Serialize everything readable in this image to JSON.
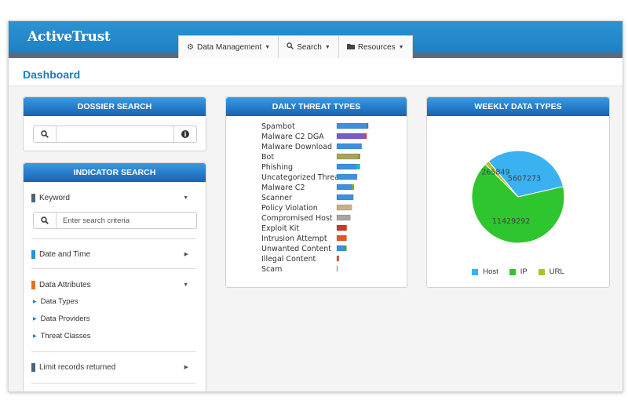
{
  "app": {
    "brand": "ActiveTrust",
    "page_title": "Dashboard"
  },
  "nav": [
    {
      "label": "Data Management",
      "icon": "gear-icon"
    },
    {
      "label": "Search",
      "icon": "search-icon"
    },
    {
      "label": "Resources",
      "icon": "folder-icon"
    }
  ],
  "dossier": {
    "title": "DOSSIER SEARCH",
    "value": ""
  },
  "indicator": {
    "title": "INDICATOR SEARCH",
    "keyword_label": "Keyword",
    "keyword_placeholder": "Enter search criteria",
    "date_label": "Date and Time",
    "attributes_label": "Data Attributes",
    "sub_items": [
      "Data Types",
      "Data Providers",
      "Threat Classes"
    ],
    "limit_label": "Limit records returned",
    "colors": {
      "keyword": "#4d6478",
      "date": "#2590d6",
      "attributes": "#e07322",
      "limit": "#4d6478"
    }
  },
  "daily": {
    "title": "DAILY THREAT TYPES",
    "chart_data": {
      "type": "bar",
      "orientation": "horizontal",
      "stacked": true,
      "categories": [
        "Spambot",
        "Malware C2 DGA",
        "Malware Download",
        "Bot",
        "Phishing",
        "Uncategorized Threat",
        "Malware C2",
        "Scanner",
        "Policy Violation",
        "Compromised Host",
        "Exploit Kit",
        "Intrusion Attempt",
        "Unwanted Content",
        "Illegal Content",
        "Scam"
      ],
      "bar_colors": [
        "#3d8fe0",
        "#7b5bc8",
        "#3d8fe0",
        "#a7a25f",
        "#3d8fe0",
        "#3d8fe0",
        "#3d8fe0",
        "#3d8fe0",
        "#c8b08a",
        "#a7a6a0",
        "#c33a33",
        "#e2582a",
        "#3d8fe0",
        "#e2582a",
        "#9a9a9a"
      ],
      "series": [
        {
          "name": "primary",
          "values": [
            40,
            38,
            33,
            29,
            26,
            27,
            20,
            22,
            20,
            18,
            13,
            13,
            10,
            2,
            0.6
          ]
        },
        {
          "name": "secondary",
          "values": [
            2,
            2,
            0,
            2,
            5,
            0,
            3,
            0,
            0,
            0,
            1,
            0,
            3,
            1,
            0
          ]
        }
      ],
      "secondary_colors": [
        "#5a7a5a",
        "#d64545",
        "#3d8fe0",
        "#6f8c3d",
        "#26b7b0",
        "#3d8fe0",
        "#7fa52c",
        "#3d8fe0",
        "#c8b08a",
        "#a7a6a0",
        "#e8b040",
        "#e2582a",
        "#3aa54a",
        "#e2582a",
        "#9a9a9a"
      ],
      "xlim": [
        0,
        48
      ]
    }
  },
  "weekly": {
    "title": "WEEKLY DATA TYPES",
    "chart_data": {
      "type": "pie",
      "labels": [
        "Host",
        "IP",
        "URL"
      ],
      "values": [
        5607273,
        11429292,
        265849
      ],
      "value_labels": [
        "5607273",
        "11429292",
        "265849"
      ],
      "colors": [
        "#3ab2f2",
        "#2ec52e",
        "#b3c02b"
      ]
    }
  }
}
